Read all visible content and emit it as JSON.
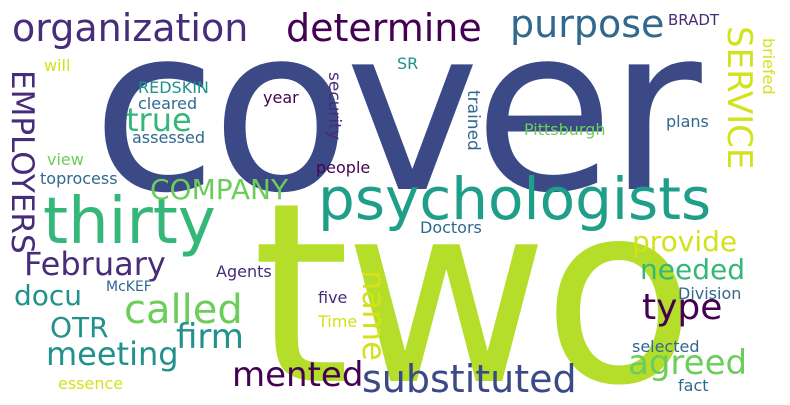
{
  "palette": {
    "dark_indigo": "#3b4a87",
    "deep_purple": "#440154",
    "purple": "#472c7a",
    "steel_blue": "#31688e",
    "teal": "#21918c",
    "sea_green": "#35b779",
    "light_green": "#6ccd5a",
    "lime": "#b5de2b",
    "yellow": "#d2e21b"
  },
  "words": {
    "cover": "cover",
    "two": "two",
    "organization": "organization",
    "determine": "determine",
    "purpose": "purpose",
    "bradt": "BRADT",
    "service": "SERVICE",
    "briefed": "briefed",
    "employers": "EMPLOYERS",
    "will": "will",
    "redskin": "REDSKIN",
    "cleared": "cleared",
    "true": "true",
    "assessed": "assessed",
    "year": "year",
    "security": "security",
    "sr": "SR",
    "trained": "trained",
    "pittsburgh": "Pittsburgh",
    "plans": "plans",
    "view": "view",
    "toprocess": "toprocess",
    "company": "COMPANY",
    "people": "people",
    "psychologists": "psychologists",
    "thirty": "thirty",
    "doctors": "Doctors",
    "provide": "provide",
    "february": "February",
    "agents": "Agents",
    "needed": "needed",
    "docu": "docu",
    "mckef": "McKEF",
    "division": "Division",
    "name": "name",
    "type": "type",
    "otr": "OTR",
    "called": "called",
    "five": "five",
    "firm": "firm",
    "time": "Time",
    "meeting": "meeting",
    "selected": "selected",
    "agreed": "agreed",
    "mented": "mented",
    "substituted": "substituted",
    "essence": "essence",
    "fact": "fact"
  }
}
